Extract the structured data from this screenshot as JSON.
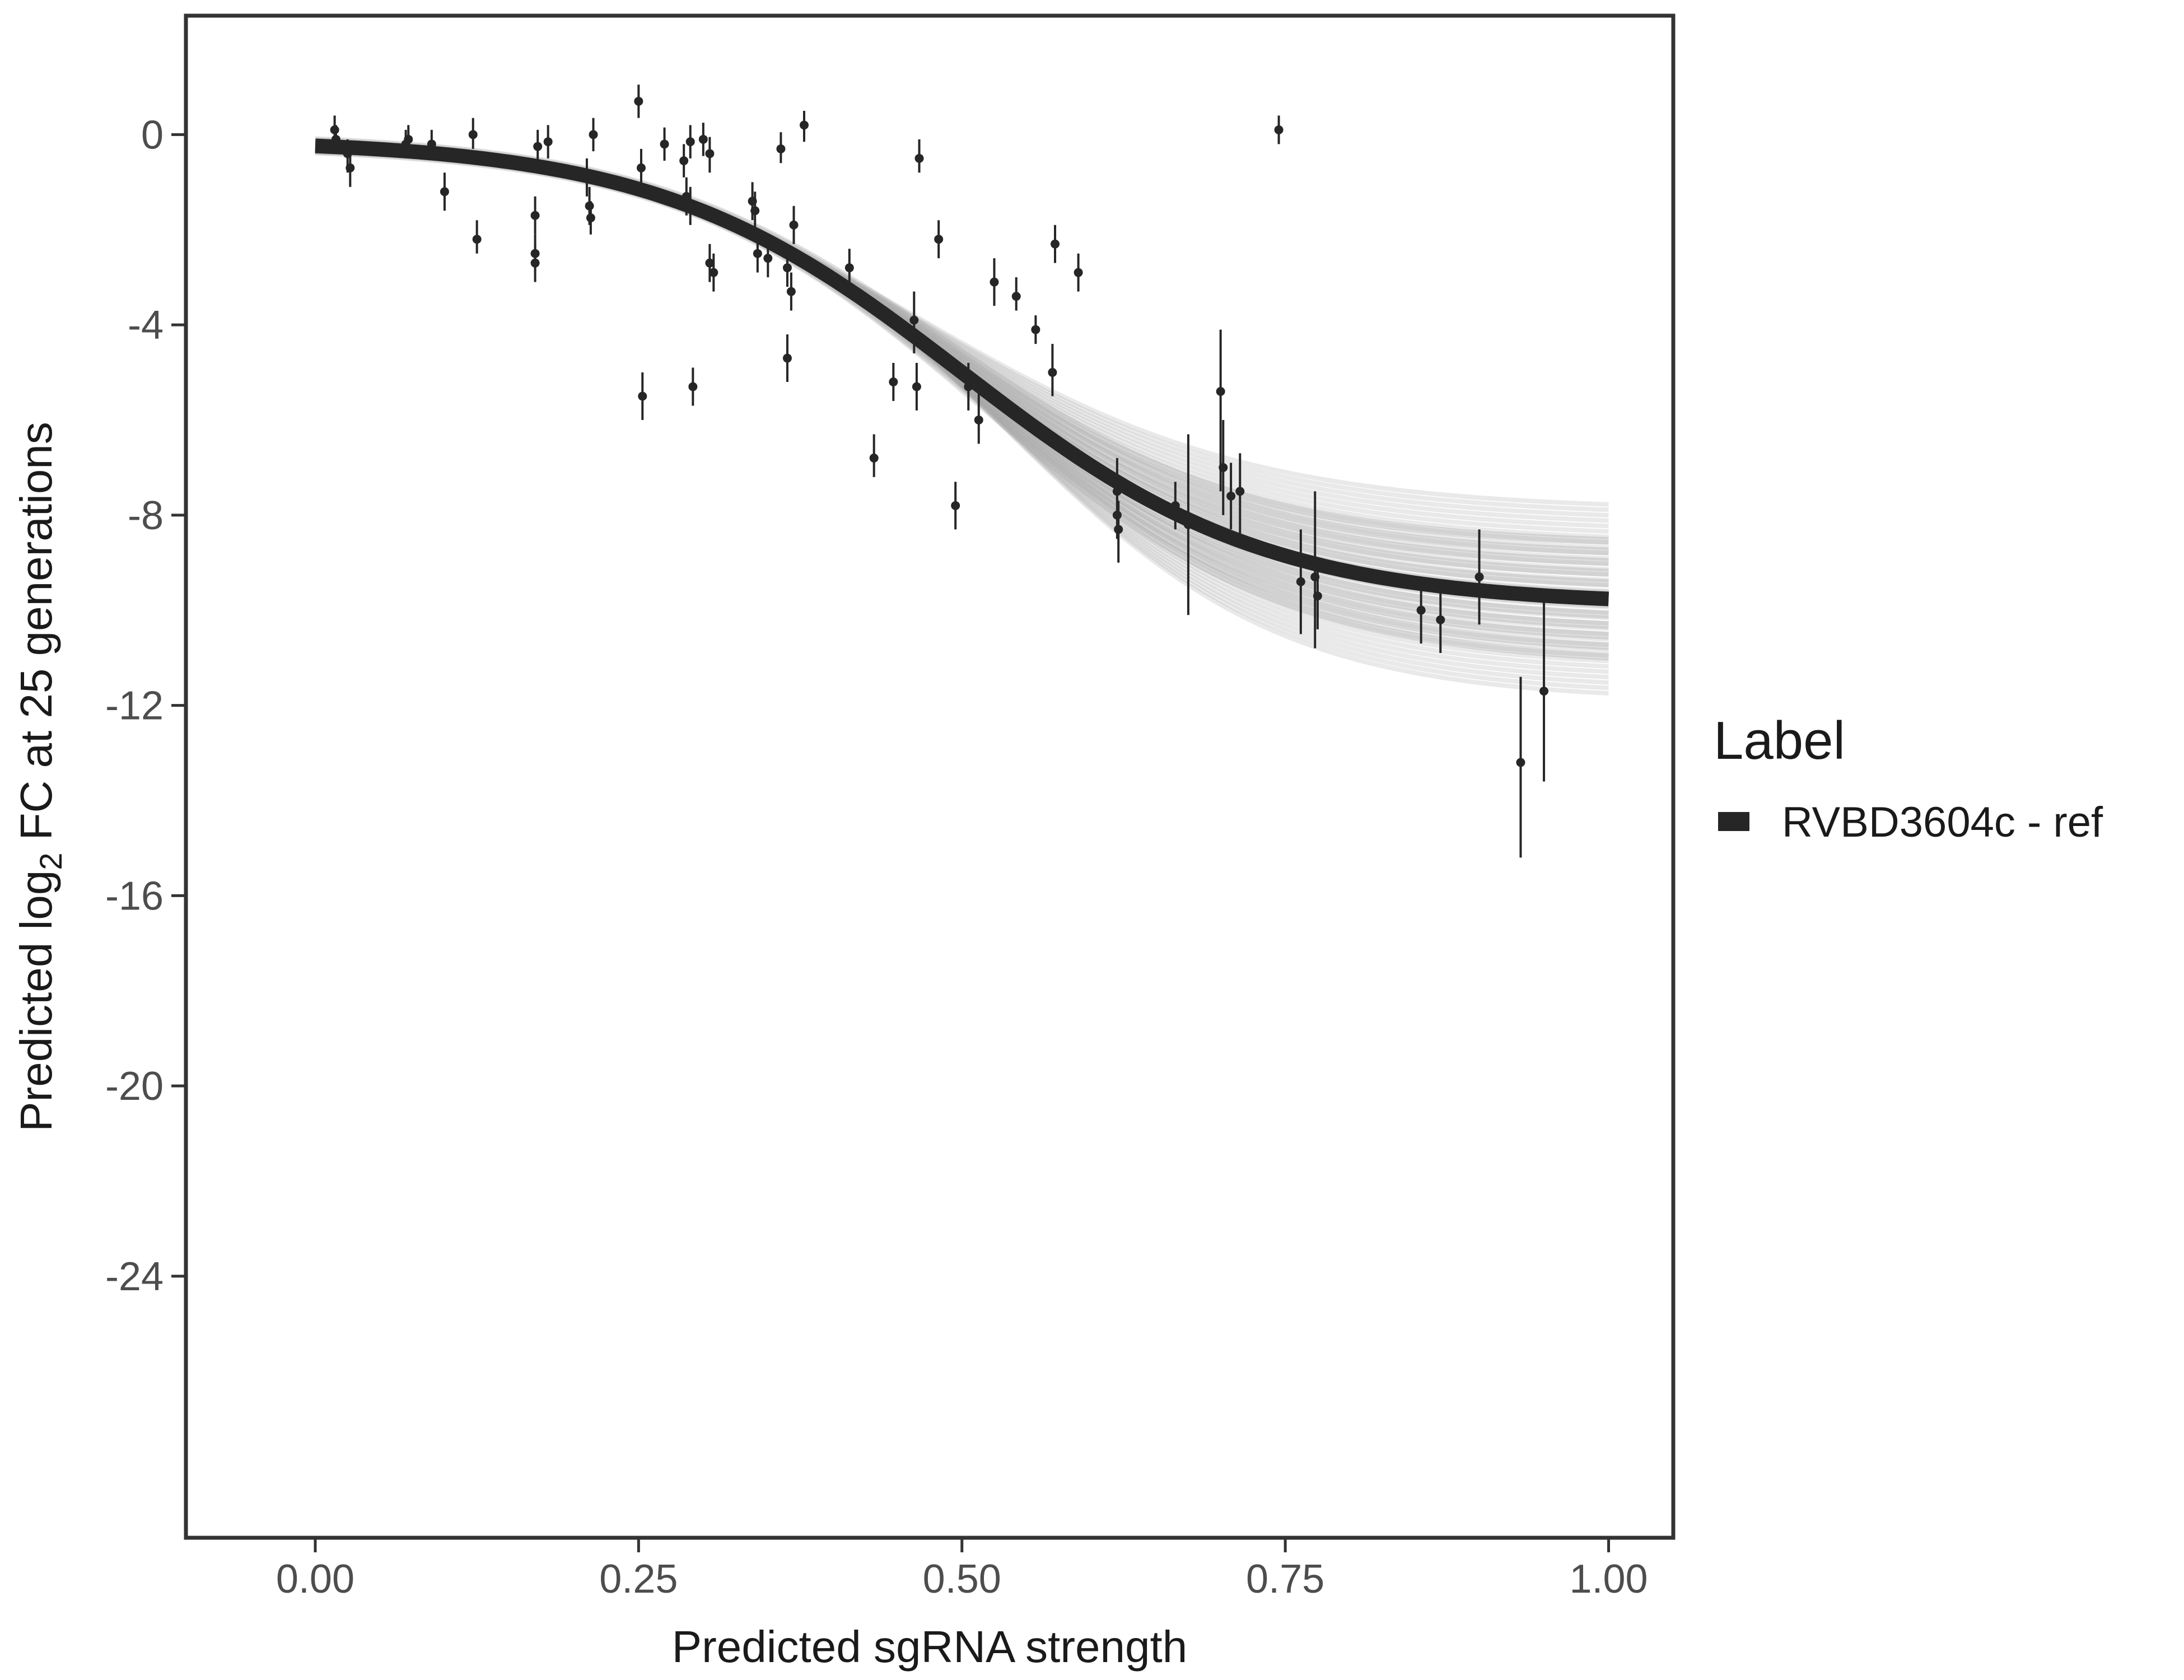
{
  "chart_data": {
    "type": "scatter",
    "title": "",
    "xlabel": "Predicted sgRNA strength",
    "ylabel_prefix": "Predicted  log",
    "ylabel_subscript": "2",
    "ylabel_suffix": " FC at 25 generations",
    "xlim": [
      -0.1,
      1.05
    ],
    "ylim": [
      -29.5,
      2.5
    ],
    "x_ticks": [
      0,
      0.25,
      0.5,
      0.75,
      1
    ],
    "x_tick_labels": [
      "0.00",
      "0.25",
      "0.50",
      "0.75",
      "1.00"
    ],
    "y_ticks": [
      0,
      -4,
      -8,
      -12,
      -16,
      -20,
      -24
    ],
    "y_tick_labels": [
      "0",
      "-4",
      "-8",
      "-12",
      "-16",
      "-20",
      "-24"
    ],
    "grid": false,
    "legend": {
      "title": "Label",
      "position": "right",
      "entries": [
        {
          "label": "RVBD3604c - ref",
          "color": "#262626"
        }
      ]
    },
    "fit": {
      "model": "logistic",
      "top": -0.1,
      "bottom": -9.9,
      "midpoint": 0.5,
      "slope": 8.5,
      "x_range": [
        0,
        1
      ],
      "band_width_start": 0.6,
      "band_width_end": 4.0
    },
    "points": [
      {
        "x": 0.015,
        "y": 0.1,
        "lo": -0.3,
        "hi": 0.4
      },
      {
        "x": 0.016,
        "y": -0.1,
        "lo": -0.4,
        "hi": 0.2
      },
      {
        "x": 0.025,
        "y": -0.4,
        "lo": -0.8,
        "hi": -0.1
      },
      {
        "x": 0.027,
        "y": -0.7,
        "lo": -1.1,
        "hi": -0.3
      },
      {
        "x": 0.07,
        "y": -0.2,
        "lo": -0.5,
        "hi": 0.1
      },
      {
        "x": 0.072,
        "y": -0.1,
        "lo": -0.4,
        "hi": 0.2
      },
      {
        "x": 0.09,
        "y": -0.2,
        "lo": -0.5,
        "hi": 0.1
      },
      {
        "x": 0.1,
        "y": -1.2,
        "lo": -1.6,
        "hi": -0.8
      },
      {
        "x": 0.122,
        "y": 0.0,
        "lo": -0.3,
        "hi": 0.35
      },
      {
        "x": 0.125,
        "y": -2.2,
        "lo": -2.5,
        "hi": -1.8
      },
      {
        "x": 0.17,
        "y": -1.7,
        "lo": -2.1,
        "hi": -1.3
      },
      {
        "x": 0.17,
        "y": -2.5,
        "lo": -2.9,
        "hi": -2.1
      },
      {
        "x": 0.17,
        "y": -2.7,
        "lo": -3.1,
        "hi": -2.3
      },
      {
        "x": 0.172,
        "y": -0.25,
        "lo": -0.6,
        "hi": 0.1
      },
      {
        "x": 0.18,
        "y": -0.15,
        "lo": -0.5,
        "hi": 0.2
      },
      {
        "x": 0.21,
        "y": -0.9,
        "lo": -1.3,
        "hi": -0.5
      },
      {
        "x": 0.212,
        "y": -1.5,
        "lo": -1.9,
        "hi": -1.1
      },
      {
        "x": 0.213,
        "y": -1.75,
        "lo": -2.1,
        "hi": -1.4
      },
      {
        "x": 0.215,
        "y": 0.0,
        "lo": -0.35,
        "hi": 0.35
      },
      {
        "x": 0.25,
        "y": 0.7,
        "lo": 0.35,
        "hi": 1.05
      },
      {
        "x": 0.252,
        "y": -0.7,
        "lo": -1.1,
        "hi": -0.3
      },
      {
        "x": 0.253,
        "y": -5.5,
        "lo": -6.0,
        "hi": -5.0
      },
      {
        "x": 0.27,
        "y": -0.2,
        "lo": -0.55,
        "hi": 0.15
      },
      {
        "x": 0.285,
        "y": -0.55,
        "lo": -0.9,
        "hi": -0.2
      },
      {
        "x": 0.287,
        "y": -1.3,
        "lo": -1.7,
        "hi": -0.9
      },
      {
        "x": 0.29,
        "y": -1.5,
        "lo": -1.9,
        "hi": -1.1
      },
      {
        "x": 0.29,
        "y": -0.15,
        "lo": -0.5,
        "hi": 0.2
      },
      {
        "x": 0.292,
        "y": -5.3,
        "lo": -5.7,
        "hi": -4.9
      },
      {
        "x": 0.3,
        "y": -0.1,
        "lo": -0.45,
        "hi": 0.25
      },
      {
        "x": 0.305,
        "y": -0.4,
        "lo": -0.8,
        "hi": -0.05
      },
      {
        "x": 0.305,
        "y": -2.7,
        "lo": -3.1,
        "hi": -2.3
      },
      {
        "x": 0.308,
        "y": -2.9,
        "lo": -3.3,
        "hi": -2.5
      },
      {
        "x": 0.338,
        "y": -1.4,
        "lo": -1.8,
        "hi": -1.0
      },
      {
        "x": 0.34,
        "y": -1.6,
        "lo": -2.0,
        "hi": -1.2
      },
      {
        "x": 0.342,
        "y": -2.5,
        "lo": -2.9,
        "hi": -2.1
      },
      {
        "x": 0.35,
        "y": -2.6,
        "lo": -3.0,
        "hi": -2.2
      },
      {
        "x": 0.36,
        "y": -0.3,
        "lo": -0.6,
        "hi": 0.05
      },
      {
        "x": 0.365,
        "y": -2.8,
        "lo": -3.2,
        "hi": -2.4
      },
      {
        "x": 0.365,
        "y": -4.7,
        "lo": -5.2,
        "hi": -4.2
      },
      {
        "x": 0.368,
        "y": -3.3,
        "lo": -3.7,
        "hi": -2.9
      },
      {
        "x": 0.37,
        "y": -1.9,
        "lo": -2.3,
        "hi": -1.5
      },
      {
        "x": 0.378,
        "y": 0.2,
        "lo": -0.15,
        "hi": 0.5
      },
      {
        "x": 0.413,
        "y": -2.8,
        "lo": -3.2,
        "hi": -2.4
      },
      {
        "x": 0.432,
        "y": -6.8,
        "lo": -7.2,
        "hi": -6.3
      },
      {
        "x": 0.447,
        "y": -5.2,
        "lo": -5.6,
        "hi": -4.8
      },
      {
        "x": 0.463,
        "y": -3.9,
        "lo": -4.6,
        "hi": -3.3
      },
      {
        "x": 0.465,
        "y": -5.3,
        "lo": -5.8,
        "hi": -4.8
      },
      {
        "x": 0.467,
        "y": -0.5,
        "lo": -0.8,
        "hi": -0.1
      },
      {
        "x": 0.482,
        "y": -2.2,
        "lo": -2.6,
        "hi": -1.8
      },
      {
        "x": 0.495,
        "y": -7.8,
        "lo": -8.3,
        "hi": -7.3
      },
      {
        "x": 0.505,
        "y": -5.3,
        "lo": -5.8,
        "hi": -4.8
      },
      {
        "x": 0.513,
        "y": -6.0,
        "lo": -6.5,
        "hi": -5.4
      },
      {
        "x": 0.525,
        "y": -3.1,
        "lo": -3.6,
        "hi": -2.6
      },
      {
        "x": 0.542,
        "y": -3.4,
        "lo": -3.7,
        "hi": -3.0
      },
      {
        "x": 0.557,
        "y": -4.1,
        "lo": -4.4,
        "hi": -3.8
      },
      {
        "x": 0.57,
        "y": -5.0,
        "lo": -5.5,
        "hi": -4.4
      },
      {
        "x": 0.572,
        "y": -2.3,
        "lo": -2.7,
        "hi": -1.9
      },
      {
        "x": 0.59,
        "y": -2.9,
        "lo": -3.3,
        "hi": -2.5
      },
      {
        "x": 0.62,
        "y": -7.5,
        "lo": -8.1,
        "hi": -6.8
      },
      {
        "x": 0.62,
        "y": -8.0,
        "lo": -8.5,
        "hi": -7.4
      },
      {
        "x": 0.621,
        "y": -8.3,
        "lo": -9.0,
        "hi": -7.7
      },
      {
        "x": 0.665,
        "y": -7.8,
        "lo": -8.3,
        "hi": -7.3
      },
      {
        "x": 0.675,
        "y": -8.2,
        "lo": -10.1,
        "hi": -6.3
      },
      {
        "x": 0.7,
        "y": -5.4,
        "lo": -7.5,
        "hi": -4.1
      },
      {
        "x": 0.702,
        "y": -7.0,
        "lo": -8.0,
        "hi": -6.0
      },
      {
        "x": 0.708,
        "y": -7.6,
        "lo": -8.3,
        "hi": -6.9
      },
      {
        "x": 0.715,
        "y": -7.5,
        "lo": -8.4,
        "hi": -6.7
      },
      {
        "x": 0.745,
        "y": 0.1,
        "lo": -0.2,
        "hi": 0.4
      },
      {
        "x": 0.762,
        "y": -9.4,
        "lo": -10.5,
        "hi": -8.3
      },
      {
        "x": 0.773,
        "y": -9.3,
        "lo": -10.8,
        "hi": -7.5
      },
      {
        "x": 0.775,
        "y": -9.7,
        "lo": -10.4,
        "hi": -9.0
      },
      {
        "x": 0.855,
        "y": -10.0,
        "lo": -10.7,
        "hi": -9.4
      },
      {
        "x": 0.87,
        "y": -10.2,
        "lo": -10.9,
        "hi": -9.5
      },
      {
        "x": 0.9,
        "y": -9.3,
        "lo": -10.3,
        "hi": -8.3
      },
      {
        "x": 0.932,
        "y": -13.2,
        "lo": -15.2,
        "hi": -11.4
      },
      {
        "x": 0.95,
        "y": -11.7,
        "lo": -13.6,
        "hi": -9.7
      }
    ]
  }
}
